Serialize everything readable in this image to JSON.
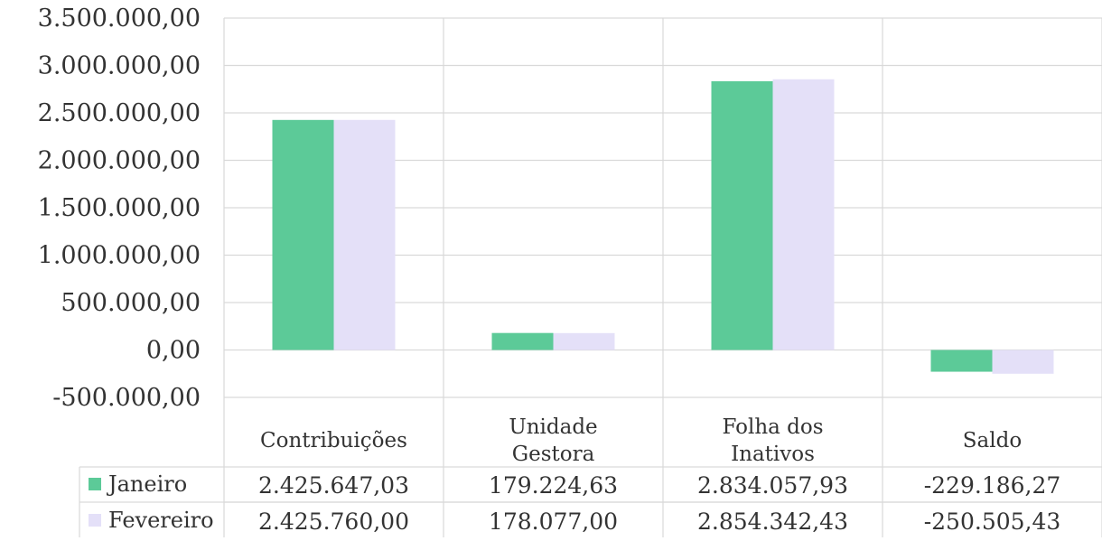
{
  "chart_data": {
    "type": "bar",
    "categories": [
      [
        "Contribuições"
      ],
      [
        "Unidade",
        "Gestora"
      ],
      [
        "Folha dos",
        "Inativos"
      ],
      [
        "Saldo"
      ]
    ],
    "series": [
      {
        "name": "Janeiro",
        "color": "#5cca98",
        "values": [
          2425647.03,
          179224.63,
          2834057.93,
          -229186.27
        ],
        "labels": [
          "2.425.647,03",
          "179.224,63",
          "2.834.057,93",
          "-229.186,27"
        ]
      },
      {
        "name": "Fevereiro",
        "color": "#e4e0f8",
        "values": [
          2425760.0,
          178077.0,
          2854342.43,
          -250505.43
        ],
        "labels": [
          "2.425.760,00",
          "178.077,00",
          "2.854.342,43",
          "-250.505,43"
        ]
      }
    ],
    "yticks": [
      "3.500.000,00",
      "3.000.000,00",
      "2.500.000,00",
      "2.000.000,00",
      "1.500.000,00",
      "1.000.000,00",
      "500.000,00",
      "0,00",
      "-500.000,00"
    ],
    "ylim": [
      -500000,
      3500000
    ],
    "grid": true,
    "legend": "data-table"
  }
}
